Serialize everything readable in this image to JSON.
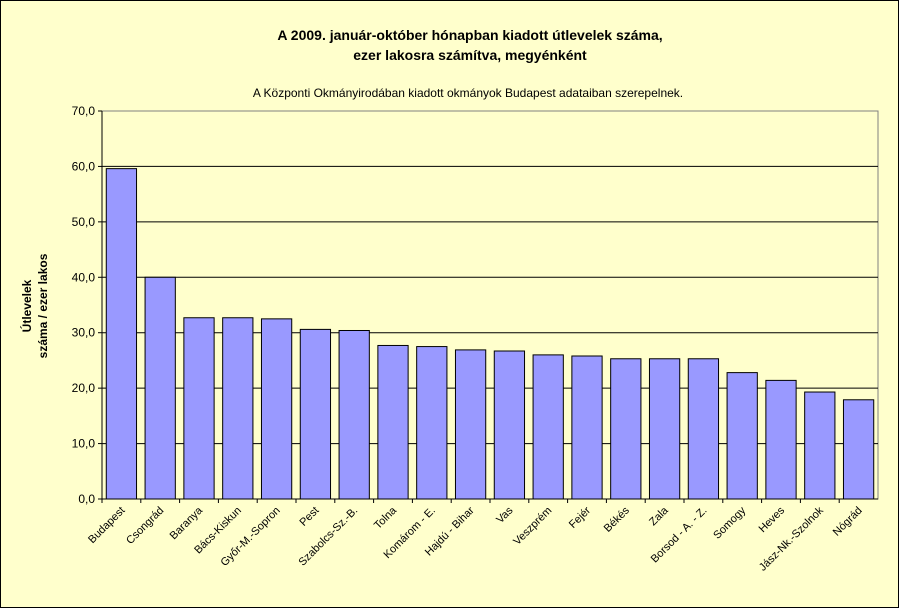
{
  "chart_data": {
    "type": "bar",
    "title_lines": [
      "A 2009. január-október hónapban kiadott útlevelek száma,",
      "ezer lakosra számítva, megyénként"
    ],
    "subtitle": "A Központi Okmányirodában kiadott okmányok Budapest adataiban szerepelnek.",
    "ylabel_lines": [
      "Útlevelek",
      "száma / ezer lakos"
    ],
    "xlabel": "",
    "ylim": [
      0,
      70
    ],
    "ytick_step": 10,
    "ytick_labels": [
      "0,0",
      "10,0",
      "20,0",
      "30,0",
      "40,0",
      "50,0",
      "60,0",
      "70,0"
    ],
    "grid": true,
    "legend": "none",
    "colors": {
      "bar": "#9999ff",
      "plot_bg": "#ffffcc",
      "frame": "#000000",
      "grid": "#000000"
    },
    "categories": [
      "Budapest",
      "Csongrád",
      "Baranya",
      "Bács-Kiskun",
      "Győr-M.-Sopron",
      "Pest",
      "Szabolcs-Sz.-B.",
      "Tolna",
      "Komárom - E.",
      "Hajdú - Bihar",
      "Vas",
      "Veszprém",
      "Fejér",
      "Békés",
      "Zala",
      "Borsod - A. - Z.",
      "Somogy",
      "Heves",
      "Jász-Nk.-Szolnok",
      "Nógrád"
    ],
    "values": [
      59.6,
      40.0,
      32.7,
      32.7,
      32.5,
      30.6,
      30.4,
      27.7,
      27.5,
      26.9,
      26.7,
      26.0,
      25.8,
      25.3,
      25.3,
      25.3,
      22.8,
      21.4,
      19.3,
      17.9
    ]
  }
}
